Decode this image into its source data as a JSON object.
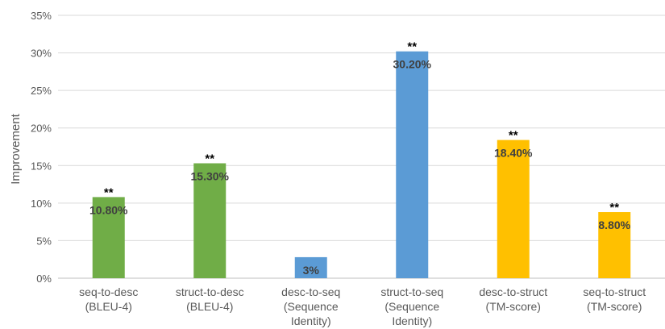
{
  "chart_data": {
    "type": "bar",
    "title": "",
    "xlabel": "",
    "ylabel": "Improvement",
    "ylim": [
      0,
      35
    ],
    "y_ticks": [
      "0%",
      "5%",
      "10%",
      "15%",
      "20%",
      "25%",
      "30%",
      "35%"
    ],
    "grid": true,
    "legend": "none",
    "categories": [
      [
        "seq-to-desc",
        "(BLEU-4)"
      ],
      [
        "struct-to-desc",
        "(BLEU-4)"
      ],
      [
        "desc-to-seq",
        "(Sequence",
        "Identity)"
      ],
      [
        "struct-to-seq",
        "(Sequence",
        "Identity)"
      ],
      [
        "desc-to-struct",
        "(TM-score)"
      ],
      [
        "seq-to-struct",
        "(TM-score)"
      ]
    ],
    "values": [
      10.8,
      15.3,
      2.8,
      30.2,
      18.4,
      8.8
    ],
    "data_labels": [
      "10.80%",
      "15.30%",
      "3%",
      "30.20%",
      "18.40%",
      "8.80%"
    ],
    "significance": [
      "**",
      "**",
      "",
      "**",
      "**",
      "**"
    ],
    "colors": [
      "#70ad47",
      "#70ad47",
      "#5b9bd5",
      "#5b9bd5",
      "#ffc000",
      "#ffc000"
    ],
    "gridline_color": "#d9d9d9",
    "axis_color": "#bfbfbf"
  }
}
